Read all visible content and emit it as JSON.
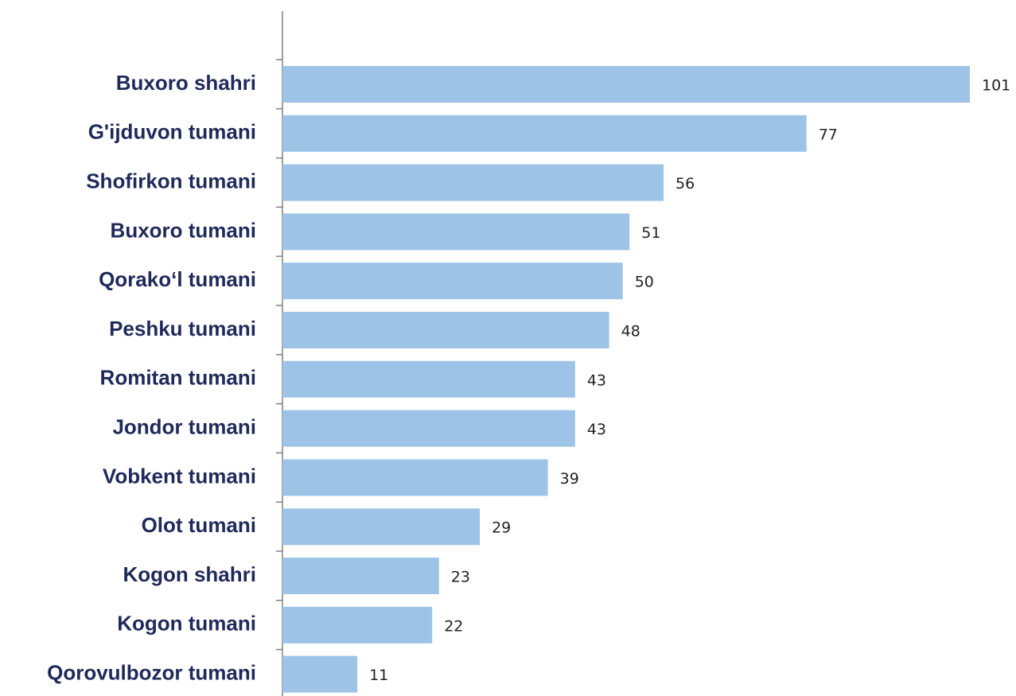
{
  "chart_data": {
    "type": "bar",
    "orientation": "horizontal",
    "categories": [
      "Buxoro shahri",
      "G'ijduvon tumani",
      "Shofirkon tumani",
      "Buxoro tumani",
      "Qorako‘l tumani",
      "Peshku tumani",
      "Romitan tumani",
      "Jondor tumani",
      "Vobkent tumani",
      "Olot tumani",
      "Kogon shahri",
      "Kogon tumani",
      "Qorovulbozor tumani"
    ],
    "values": [
      101,
      77,
      56,
      51,
      50,
      48,
      43,
      43,
      39,
      29,
      23,
      22,
      11
    ],
    "color": "#9dc3e6"
  }
}
